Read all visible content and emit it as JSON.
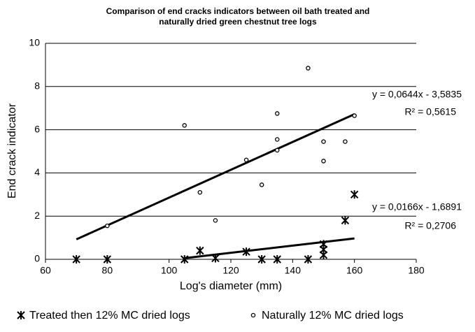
{
  "chart_data": {
    "type": "scatter",
    "title": [
      "Comparison of end cracks indicators between oil bath treated and",
      "naturally dried green chestnut tree logs"
    ],
    "x_label": "Log's diameter (mm)",
    "y_label": "End crack indicator",
    "xlim": [
      60,
      180
    ],
    "xticks": [
      60,
      80,
      100,
      120,
      140,
      160,
      180
    ],
    "ylim": [
      0,
      10
    ],
    "yticks": [
      0,
      2,
      4,
      6,
      8,
      10
    ],
    "grid": true,
    "legend": "bottom",
    "series": [
      {
        "name": "Treated then 12% MC dried logs",
        "color": "#000000",
        "marker": "asterisk",
        "x": [
          70,
          80,
          105,
          110,
          115,
          125,
          130,
          135,
          145,
          150,
          150,
          150,
          157,
          160
        ],
        "values": [
          0,
          0,
          0,
          0.4,
          0.05,
          0.35,
          0,
          0,
          0,
          0.2,
          0.45,
          0.7,
          1.8,
          3
        ],
        "trendline": {
          "label": "y = 0,0166x - 1,6891",
          "r2_label": "R² = 0,2706",
          "slope": 0.0166,
          "intercept": -1.6891,
          "x": [
            105,
            160
          ]
        }
      },
      {
        "name": "Naturally 12% MC dried logs",
        "color": "#000000",
        "marker": "circle",
        "x": [
          80,
          105,
          110,
          115,
          125,
          130,
          135,
          135,
          135,
          145,
          150,
          150,
          157,
          160
        ],
        "values": [
          1.55,
          6.2,
          3.1,
          1.8,
          4.6,
          3.45,
          6.75,
          5.55,
          5.05,
          8.85,
          5.45,
          4.55,
          5.45,
          6.65
        ],
        "trendline": {
          "label": "y = 0,0644x - 3,5835",
          "r2_label": "R² = 0,5615",
          "slope": 0.0644,
          "intercept": -3.5835,
          "x": [
            70,
            160
          ]
        }
      }
    ]
  }
}
